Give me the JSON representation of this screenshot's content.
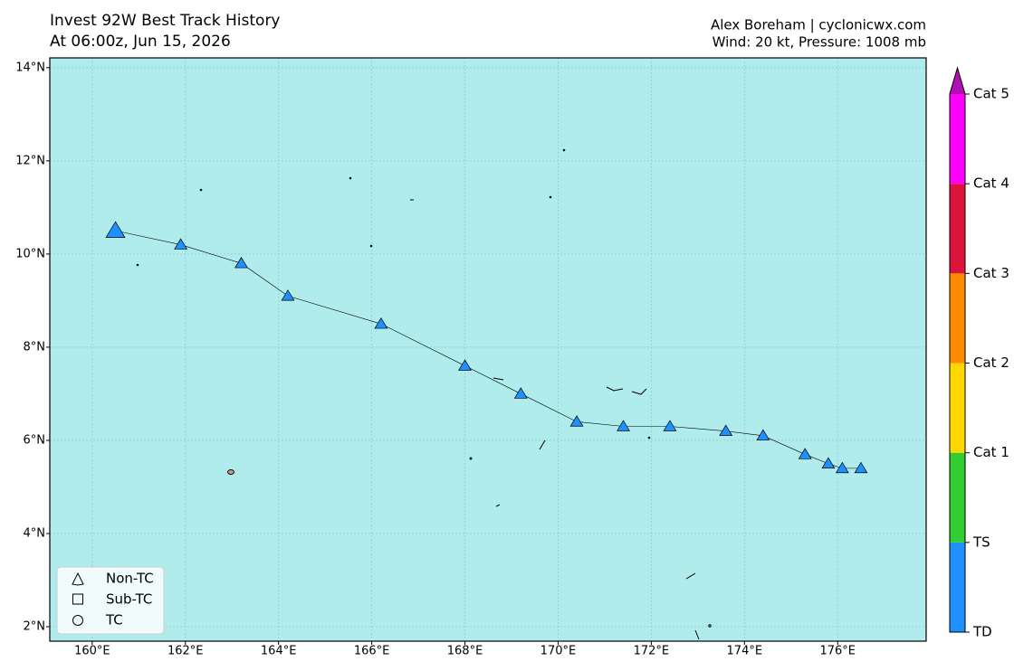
{
  "chart_data": {
    "type": "track-map",
    "title": "Invest 92W Best Track History",
    "subtitle": "At 06:00z, Jun 15, 2026",
    "credit": "Alex Boreham | cyclonicwx.com",
    "info": "Wind: 20 kt, Pressure: 1008 mb",
    "xlim": [
      159.09,
      177.9
    ],
    "ylim": [
      1.69,
      14.21
    ],
    "xticks": [
      {
        "value": 160,
        "label": "160°E"
      },
      {
        "value": 162,
        "label": "162°E"
      },
      {
        "value": 164,
        "label": "164°E"
      },
      {
        "value": 166,
        "label": "166°E"
      },
      {
        "value": 168,
        "label": "168°E"
      },
      {
        "value": 170,
        "label": "170°E"
      },
      {
        "value": 172,
        "label": "172°E"
      },
      {
        "value": 174,
        "label": "174°E"
      },
      {
        "value": 176,
        "label": "176°E"
      }
    ],
    "yticks": [
      {
        "value": 2,
        "label": "2°N"
      },
      {
        "value": 4,
        "label": "4°N"
      },
      {
        "value": 6,
        "label": "6°N"
      },
      {
        "value": 8,
        "label": "8°N"
      },
      {
        "value": 10,
        "label": "10°N"
      },
      {
        "value": 12,
        "label": "12°N"
      },
      {
        "value": 14,
        "label": "14°N"
      }
    ],
    "grid": true,
    "track": {
      "color": "#1e90ff",
      "lon": [
        176.5,
        176.1,
        175.8,
        175.3,
        174.4,
        173.6,
        172.4,
        171.4,
        170.4,
        169.2,
        168.0,
        166.2,
        164.2,
        163.2,
        161.9,
        160.5
      ],
      "lat": [
        5.4,
        5.4,
        5.5,
        5.7,
        6.1,
        6.2,
        6.3,
        6.3,
        6.4,
        7.0,
        7.6,
        8.5,
        9.1,
        9.8,
        10.2,
        10.5
      ]
    },
    "legend": {
      "position": "lower left",
      "entries": [
        "Non-TC",
        "Sub-TC",
        "TC"
      ]
    },
    "colorbar": {
      "labels": [
        "TD",
        "TS",
        "Cat 1",
        "Cat 2",
        "Cat 3",
        "Cat 4",
        "Cat 5"
      ],
      "colors": [
        "#1e90ff",
        "#32cd32",
        "#ffd700",
        "#ff8c00",
        "#dc143c",
        "#ff00ff",
        "#b40fb4"
      ]
    }
  }
}
